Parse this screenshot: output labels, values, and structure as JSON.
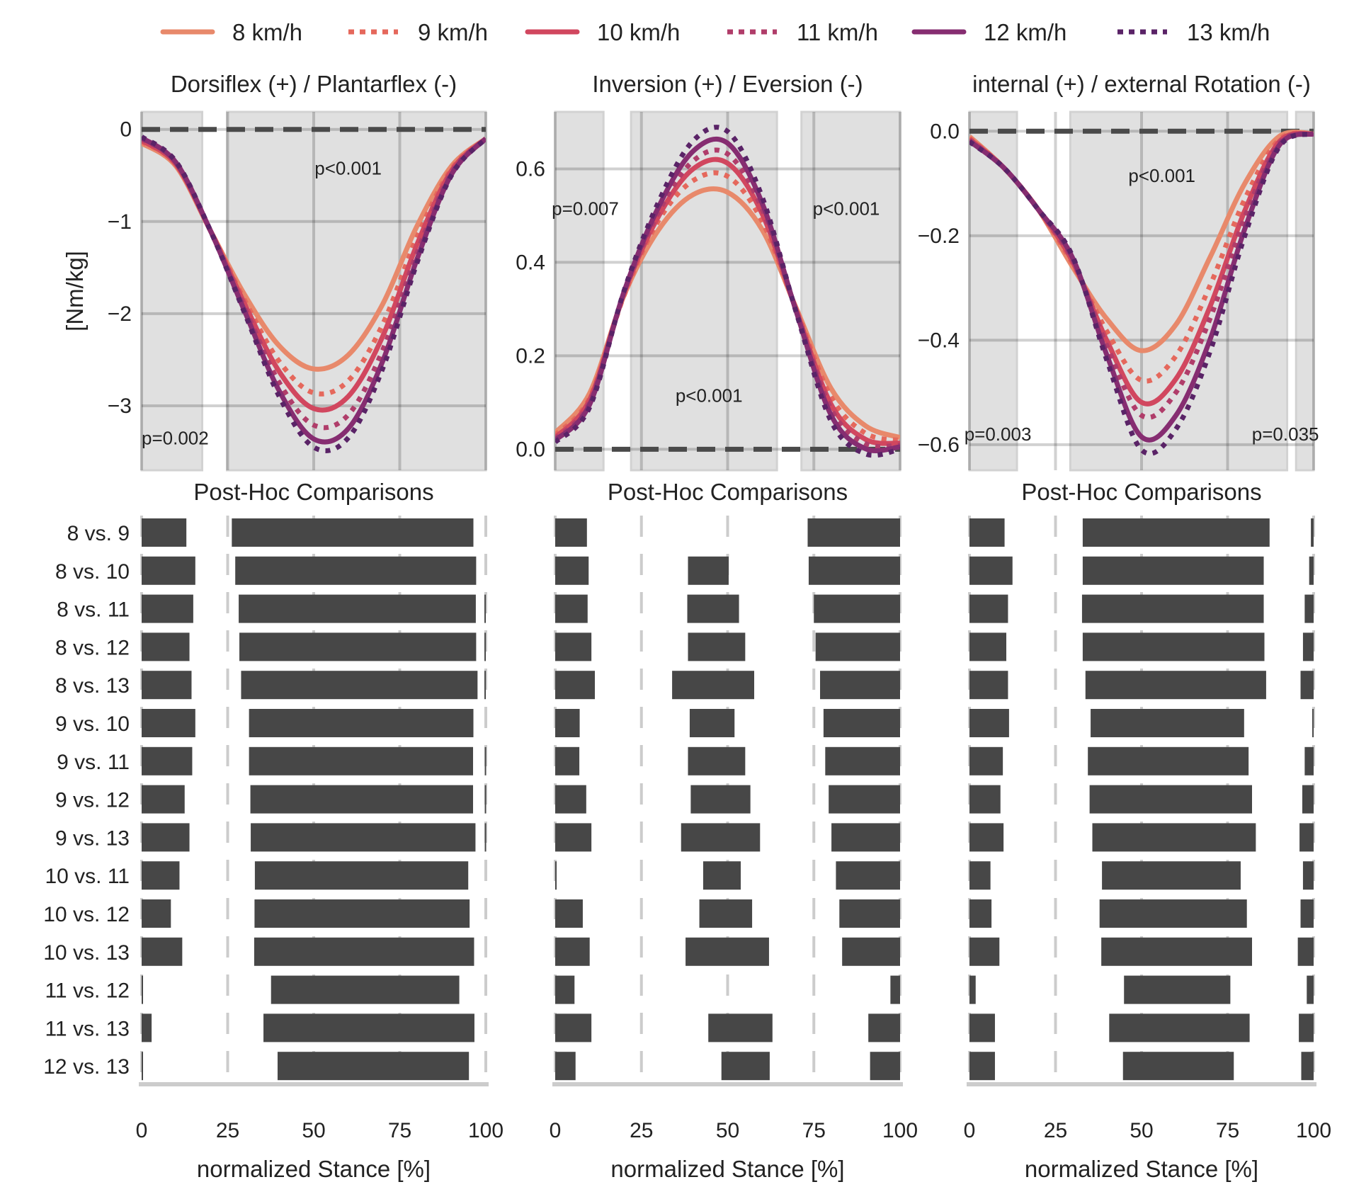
{
  "chart_data": {
    "type": "line",
    "legend_placement": "top",
    "legend": [
      {
        "label": "8 km/h",
        "color": "#e8896b",
        "style": "solid"
      },
      {
        "label": "9 km/h",
        "color": "#e5685c",
        "style": "dotted"
      },
      {
        "label": "10 km/h",
        "color": "#d1475f",
        "style": "solid"
      },
      {
        "label": "11 km/h",
        "color": "#b03d6a",
        "style": "dotted"
      },
      {
        "label": "12 km/h",
        "color": "#862d71",
        "style": "solid"
      },
      {
        "label": "13 km/h",
        "color": "#5a2367",
        "style": "dotted"
      }
    ],
    "x": [
      0,
      10,
      20,
      30,
      40,
      50,
      60,
      70,
      80,
      90,
      100
    ],
    "xlim": [
      0,
      100
    ],
    "xticks": [
      "0",
      "25",
      "50",
      "75",
      "100"
    ],
    "xlabel": "normalized Stance [%]",
    "grid": true,
    "shade_color": "#e0e0e0",
    "line_panels": [
      {
        "title": "Dorsiflex (+) / Plantarflex (-)",
        "ylabel": "[Nm/kg]",
        "ylim": [
          -3.7,
          0.19
        ],
        "yticks": [
          0,
          -1,
          -2,
          -3
        ],
        "ytick_labels": [
          "0",
          "−1",
          "−2",
          "−3"
        ],
        "significant_regions": [
          [
            0,
            17.6
          ],
          [
            24.8,
            100
          ]
        ],
        "annotations": [
          {
            "text": "p<0.001",
            "x": 60,
            "y": -0.42,
            "anchor": "middle"
          },
          {
            "text": "p=0.002",
            "x": 0,
            "y": -3.35,
            "anchor": "start"
          }
        ],
        "series": [
          [
            -0.15,
            -0.4,
            -1.1,
            -1.8,
            -2.35,
            -2.6,
            -2.45,
            -1.9,
            -1.05,
            -0.4,
            -0.1
          ],
          [
            -0.13,
            -0.38,
            -1.1,
            -1.86,
            -2.52,
            -2.86,
            -2.73,
            -2.12,
            -1.17,
            -0.43,
            -0.1
          ],
          [
            -0.12,
            -0.38,
            -1.1,
            -1.9,
            -2.63,
            -3.03,
            -2.9,
            -2.25,
            -1.25,
            -0.45,
            -0.1
          ],
          [
            -0.1,
            -0.36,
            -1.1,
            -1.94,
            -2.75,
            -3.21,
            -3.1,
            -2.4,
            -1.34,
            -0.47,
            -0.1
          ],
          [
            -0.09,
            -0.36,
            -1.1,
            -1.98,
            -2.84,
            -3.36,
            -3.25,
            -2.52,
            -1.41,
            -0.49,
            -0.1
          ],
          [
            -0.08,
            -0.35,
            -1.1,
            -2.0,
            -2.9,
            -3.45,
            -3.35,
            -2.6,
            -1.45,
            -0.5,
            -0.1
          ]
        ]
      },
      {
        "title": "Inversion (+) / Eversion (-)",
        "ylabel": "",
        "ylim": [
          -0.045,
          0.722
        ],
        "yticks": [
          0,
          0.2,
          0.4,
          0.6
        ],
        "ytick_labels": [
          "0.0",
          "0.2",
          "0.4",
          "0.6"
        ],
        "significant_regions": [
          [
            0,
            14
          ],
          [
            22,
            64.3
          ],
          [
            71.4,
            100
          ]
        ],
        "annotations": [
          {
            "text": "p=0.007",
            "x": -1,
            "y": 0.515,
            "anchor": "start"
          },
          {
            "text": "p<0.001",
            "x": 84.4,
            "y": 0.515,
            "anchor": "middle"
          },
          {
            "text": "p<0.001",
            "x": 44.6,
            "y": 0.115,
            "anchor": "middle"
          }
        ],
        "series": [
          [
            0.035,
            0.12,
            0.33,
            0.47,
            0.545,
            0.55,
            0.47,
            0.3,
            0.13,
            0.05,
            0.025
          ],
          [
            0.03,
            0.11,
            0.33,
            0.49,
            0.575,
            0.584,
            0.488,
            0.297,
            0.112,
            0.034,
            0.019
          ],
          [
            0.025,
            0.106,
            0.335,
            0.499,
            0.6,
            0.612,
            0.504,
            0.295,
            0.096,
            0.021,
            0.013
          ],
          [
            0.022,
            0.101,
            0.336,
            0.508,
            0.617,
            0.632,
            0.514,
            0.294,
            0.086,
            0.012,
            0.009
          ],
          [
            0.019,
            0.096,
            0.338,
            0.519,
            0.638,
            0.655,
            0.527,
            0.292,
            0.073,
            0.001,
            0.005
          ],
          [
            0.015,
            0.09,
            0.34,
            0.53,
            0.66,
            0.68,
            0.54,
            0.29,
            0.06,
            -0.01,
            0.0
          ]
        ]
      },
      {
        "title": "internal (+) / external Rotation (-)",
        "ylabel": "",
        "ylim": [
          -0.649,
          0.037
        ],
        "yticks": [
          0,
          -0.2,
          -0.4,
          -0.6
        ],
        "ytick_labels": [
          "0.0",
          "−0.2",
          "−0.4",
          "−0.6"
        ],
        "significant_regions": [
          [
            0,
            13.8
          ],
          [
            29.3,
            92.3
          ],
          [
            94.9,
            100
          ]
        ],
        "annotations": [
          {
            "text": "p<0.001",
            "x": 55.9,
            "y": -0.085,
            "anchor": "middle"
          },
          {
            "text": "p=0.003",
            "x": -1.5,
            "y": -0.58,
            "anchor": "start"
          },
          {
            "text": "p=0.035",
            "x": 91.8,
            "y": -0.58,
            "anchor": "middle"
          }
        ],
        "series": [
          [
            -0.01,
            -0.07,
            -0.15,
            -0.26,
            -0.36,
            -0.42,
            -0.37,
            -0.24,
            -0.1,
            -0.01,
            -0.005
          ],
          [
            -0.013,
            -0.07,
            -0.15,
            -0.254,
            -0.384,
            -0.477,
            -0.43,
            -0.294,
            -0.13,
            -0.016,
            -0.005
          ],
          [
            -0.015,
            -0.07,
            -0.15,
            -0.25,
            -0.402,
            -0.519,
            -0.474,
            -0.334,
            -0.152,
            -0.02,
            -0.005
          ],
          [
            -0.017,
            -0.07,
            -0.15,
            -0.247,
            -0.412,
            -0.544,
            -0.5,
            -0.357,
            -0.165,
            -0.023,
            -0.005
          ],
          [
            -0.019,
            -0.07,
            -0.15,
            -0.243,
            -0.43,
            -0.585,
            -0.544,
            -0.397,
            -0.187,
            -0.027,
            -0.005
          ],
          [
            -0.02,
            -0.07,
            -0.15,
            -0.24,
            -0.44,
            -0.61,
            -0.57,
            -0.42,
            -0.2,
            -0.03,
            -0.005
          ]
        ]
      }
    ],
    "posthoc": {
      "type": "bar",
      "title": "Post-Hoc Comparisons",
      "bar_color": "#474747",
      "comparisons": [
        "8 vs. 9",
        "8 vs. 10",
        "8 vs. 11",
        "8 vs. 12",
        "8 vs. 13",
        "9 vs. 10",
        "9 vs. 11",
        "9 vs. 12",
        "9 vs. 13",
        "10 vs. 11",
        "10 vs. 12",
        "10 vs. 13",
        "11 vs. 12",
        "11 vs. 13",
        "12 vs. 13"
      ],
      "panels": [
        [
          [
            [
              0,
              13
            ],
            [
              26.2,
              96.4
            ]
          ],
          [
            [
              0,
              15.6
            ],
            [
              27.2,
              97.2
            ]
          ],
          [
            [
              0,
              15
            ],
            [
              28.2,
              97.1
            ],
            [
              99.6,
              100
            ]
          ],
          [
            [
              0,
              13.9
            ],
            [
              28.4,
              97.2
            ],
            [
              99.6,
              100
            ]
          ],
          [
            [
              0,
              14.5
            ],
            [
              28.9,
              97.6
            ],
            [
              99.6,
              100
            ]
          ],
          [
            [
              0,
              15.6
            ],
            [
              31.2,
              96.4
            ]
          ],
          [
            [
              0,
              14.7
            ],
            [
              31.2,
              96.3
            ],
            [
              99.7,
              100
            ]
          ],
          [
            [
              0,
              12.5
            ],
            [
              31.6,
              96.3
            ],
            [
              99.7,
              100
            ]
          ],
          [
            [
              0,
              13.9
            ],
            [
              31.7,
              97
            ],
            [
              99.7,
              100
            ]
          ],
          [
            [
              0,
              11
            ],
            [
              32.9,
              94.9
            ]
          ],
          [
            [
              0,
              8.5
            ],
            [
              32.8,
              95.3
            ]
          ],
          [
            [
              0,
              11.8
            ],
            [
              32.7,
              96.6
            ]
          ],
          [
            [
              0,
              0.4
            ],
            [
              37.6,
              92.3
            ]
          ],
          [
            [
              0,
              2.9
            ],
            [
              35.4,
              96.7
            ]
          ],
          [
            [
              0,
              0.4
            ],
            [
              39.5,
              95.1
            ]
          ]
        ],
        [
          [
            [
              0,
              9.2
            ],
            [
              73.2,
              100
            ]
          ],
          [
            [
              0,
              9.7
            ],
            [
              38.5,
              50.3
            ],
            [
              73.5,
              100
            ]
          ],
          [
            [
              0,
              9.4
            ],
            [
              38.3,
              53.3
            ],
            [
              75,
              100
            ]
          ],
          [
            [
              0,
              10.5
            ],
            [
              38.5,
              55.1
            ],
            [
              75.5,
              100
            ]
          ],
          [
            [
              0,
              11.5
            ],
            [
              33.9,
              57.7
            ],
            [
              76.8,
              100
            ]
          ],
          [
            [
              0,
              7.1
            ],
            [
              39,
              52
            ],
            [
              77.8,
              100
            ]
          ],
          [
            [
              0,
              7
            ],
            [
              38.5,
              55.1
            ],
            [
              78.3,
              100
            ]
          ],
          [
            [
              0,
              9
            ],
            [
              39.3,
              56.6
            ],
            [
              79.3,
              100
            ]
          ],
          [
            [
              0,
              10.5
            ],
            [
              36.5,
              59.4
            ],
            [
              80.1,
              100
            ]
          ],
          [
            [
              0,
              0.4
            ],
            [
              42.9,
              53.8
            ],
            [
              81.4,
              100
            ]
          ],
          [
            [
              0,
              8
            ],
            [
              41.8,
              57.1
            ],
            [
              82.4,
              100
            ]
          ],
          [
            [
              0,
              10
            ],
            [
              37.8,
              62
            ],
            [
              83.2,
              100
            ]
          ],
          [
            [
              0,
              5.6
            ],
            [
              97.2,
              100
            ]
          ],
          [
            [
              0,
              10.5
            ],
            [
              44.4,
              63
            ],
            [
              90.8,
              100
            ]
          ],
          [
            [
              0,
              5.9
            ],
            [
              48.2,
              62.2
            ],
            [
              91.3,
              100
            ]
          ]
        ],
        [
          [
            [
              0,
              10.2
            ],
            [
              32.9,
              87.2
            ],
            [
              99.2,
              100
            ]
          ],
          [
            [
              0,
              12.5
            ],
            [
              32.9,
              85.5
            ],
            [
              98.7,
              100
            ]
          ],
          [
            [
              0,
              11.2
            ],
            [
              32.7,
              85.5
            ],
            [
              97.4,
              100
            ]
          ],
          [
            [
              0,
              10.7
            ],
            [
              32.9,
              85.7
            ],
            [
              96.9,
              100
            ]
          ],
          [
            [
              0,
              11.2
            ],
            [
              33.7,
              86.2
            ],
            [
              96.2,
              100
            ]
          ],
          [
            [
              0,
              11.5
            ],
            [
              35.2,
              79.8
            ],
            [
              99.6,
              100
            ]
          ],
          [
            [
              0,
              9.7
            ],
            [
              34.4,
              81.1
            ],
            [
              97.4,
              100
            ]
          ],
          [
            [
              0,
              9
            ],
            [
              34.9,
              82.1
            ],
            [
              96.7,
              100
            ]
          ],
          [
            [
              0,
              9.9
            ],
            [
              35.7,
              83.2
            ],
            [
              95.9,
              100
            ]
          ],
          [
            [
              0,
              6.1
            ],
            [
              38.5,
              78.8
            ],
            [
              96.9,
              100
            ]
          ],
          [
            [
              0,
              6.4
            ],
            [
              37.8,
              80.6
            ],
            [
              96.2,
              100
            ]
          ],
          [
            [
              0,
              8.7
            ],
            [
              38.3,
              82.1
            ],
            [
              95.4,
              100
            ]
          ],
          [
            [
              0,
              1.8
            ],
            [
              44.9,
              75.8
            ],
            [
              98,
              100
            ]
          ],
          [
            [
              0,
              7.4
            ],
            [
              40.6,
              81.4
            ],
            [
              95.7,
              100
            ]
          ],
          [
            [
              0,
              7.4
            ],
            [
              44.6,
              76.8
            ],
            [
              96.4,
              100
            ]
          ]
        ]
      ]
    }
  }
}
